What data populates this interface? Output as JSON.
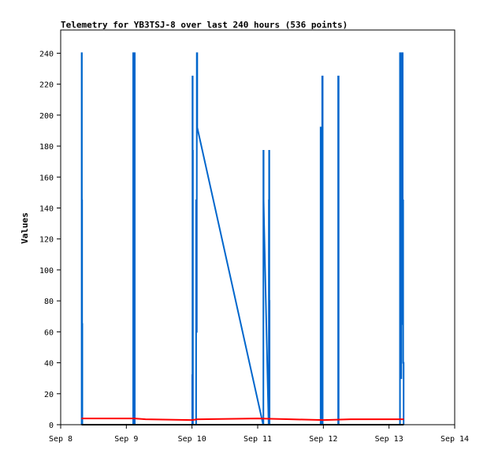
{
  "chart_data": {
    "type": "line",
    "title": "Telemetry for YB3TSJ-8 over last 240 hours (536 points)",
    "xlabel": "",
    "ylabel": "Values",
    "grid": false,
    "legend": "none",
    "xlim": [
      "Sep 8",
      "Sep 14"
    ],
    "ylim": [
      0,
      255
    ],
    "x_ticks": [
      "Sep 8",
      "Sep 9",
      "Sep 10",
      "Sep 11",
      "Sep 12",
      "Sep 13",
      "Sep 14"
    ],
    "y_ticks": [
      0,
      20,
      40,
      60,
      80,
      100,
      120,
      140,
      160,
      180,
      200,
      220,
      240
    ],
    "series": [
      {
        "color": "#0066cc",
        "points": [
          [
            "Sep 8 07:40",
            0
          ],
          [
            "Sep 8 07:40",
            240
          ],
          [
            "Sep 8 07:45",
            240
          ],
          [
            "Sep 8 07:45",
            145
          ],
          [
            "Sep 8 07:50",
            145
          ],
          [
            "Sep 8 07:50",
            65
          ],
          [
            "Sep 8 07:55",
            65
          ],
          [
            "Sep 8 07:55",
            0
          ],
          [
            "Sep 9 02:30",
            0
          ],
          [
            "Sep 9 02:30",
            240
          ],
          [
            "Sep 9 02:40",
            240
          ],
          [
            "Sep 9 02:40",
            0
          ],
          [
            "Sep 9 02:55",
            0
          ],
          [
            "Sep 9 02:55",
            240
          ],
          [
            "Sep 9 03:05",
            240
          ],
          [
            "Sep 9 03:05",
            0
          ],
          [
            "Sep 10 00:05",
            0
          ],
          [
            "Sep 10 00:05",
            32
          ],
          [
            "Sep 10 00:10",
            32
          ],
          [
            "Sep 10 00:10",
            225
          ],
          [
            "Sep 10 00:15",
            225
          ],
          [
            "Sep 10 00:15",
            177
          ],
          [
            "Sep 10 00:20",
            177
          ],
          [
            "Sep 10 00:20",
            0
          ],
          [
            "Sep 10 01:30",
            0
          ],
          [
            "Sep 10 01:30",
            145
          ],
          [
            "Sep 10 01:40",
            145
          ],
          [
            "Sep 10 01:40",
            60
          ],
          [
            "Sep 10 01:45",
            60
          ],
          [
            "Sep 10 01:45",
            240
          ],
          [
            "Sep 10 01:55",
            240
          ],
          [
            "Sep 10 01:55",
            192
          ],
          [
            "Sep 11 02:00",
            0
          ],
          [
            "Sep 11 02:05",
            0
          ],
          [
            "Sep 11 02:05",
            177
          ],
          [
            "Sep 11 02:10",
            177
          ],
          [
            "Sep 11 02:10",
            145
          ],
          [
            "Sep 11 02:20",
            130
          ],
          [
            "Sep 11 04:00",
            0
          ],
          [
            "Sep 11 04:05",
            0
          ],
          [
            "Sep 11 04:05",
            145
          ],
          [
            "Sep 11 04:10",
            145
          ],
          [
            "Sep 11 04:10",
            177
          ],
          [
            "Sep 11 04:15",
            177
          ],
          [
            "Sep 11 04:15",
            80
          ],
          [
            "Sep 11 04:20",
            80
          ],
          [
            "Sep 11 04:20",
            0
          ],
          [
            "Sep 11 23:00",
            0
          ],
          [
            "Sep 11 23:00",
            192
          ],
          [
            "Sep 11 23:10",
            192
          ],
          [
            "Sep 11 23:10",
            0
          ],
          [
            "Sep 11 23:35",
            0
          ],
          [
            "Sep 11 23:35",
            225
          ],
          [
            "Sep 11 23:45",
            225
          ],
          [
            "Sep 11 23:45",
            0
          ],
          [
            "Sep 12 05:25",
            0
          ],
          [
            "Sep 12 05:25",
            225
          ],
          [
            "Sep 12 05:35",
            225
          ],
          [
            "Sep 12 05:35",
            0
          ],
          [
            "Sep 13 04:00",
            0
          ],
          [
            "Sep 13 04:00",
            240
          ],
          [
            "Sep 13 04:05",
            240
          ],
          [
            "Sep 13 04:05",
            225
          ],
          [
            "Sep 13 04:10",
            225
          ],
          [
            "Sep 13 04:10",
            120
          ],
          [
            "Sep 13 04:20",
            120
          ],
          [
            "Sep 13 04:20",
            30
          ],
          [
            "Sep 13 04:30",
            30
          ],
          [
            "Sep 13 04:30",
            240
          ],
          [
            "Sep 13 04:40",
            240
          ],
          [
            "Sep 13 04:40",
            65
          ],
          [
            "Sep 13 04:50",
            65
          ],
          [
            "Sep 13 04:50",
            240
          ],
          [
            "Sep 13 05:00",
            240
          ],
          [
            "Sep 13 05:00",
            145
          ],
          [
            "Sep 13 05:10",
            145
          ],
          [
            "Sep 13 05:10",
            40
          ],
          [
            "Sep 13 05:20",
            40
          ],
          [
            "Sep 13 05:20",
            0
          ]
        ]
      },
      {
        "color": "#ff0000",
        "points": [
          [
            "Sep 8 07:40",
            4
          ],
          [
            "Sep 9 03:00",
            4
          ],
          [
            "Sep 9 07:00",
            3.5
          ],
          [
            "Sep 10 00:00",
            3
          ],
          [
            "Sep 10 02:00",
            3.5
          ],
          [
            "Sep 11 00:00",
            4
          ],
          [
            "Sep 11 12:00",
            3.5
          ],
          [
            "Sep 12 00:00",
            3
          ],
          [
            "Sep 12 10:00",
            3.5
          ],
          [
            "Sep 13 05:20",
            3.5
          ]
        ]
      },
      {
        "color": "#000000",
        "points": [
          [
            "Sep 8 07:40",
            0
          ],
          [
            "Sep 13 05:20",
            0
          ]
        ]
      }
    ]
  }
}
